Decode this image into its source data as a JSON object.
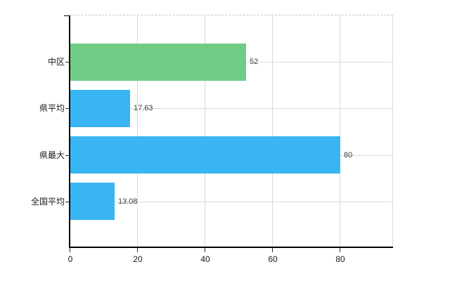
{
  "chart_data": {
    "type": "bar",
    "orientation": "horizontal",
    "title": "",
    "xlabel": "",
    "ylabel": "",
    "categories": [
      "中区",
      "県平均",
      "県最大",
      "全国平均"
    ],
    "values": [
      52,
      17.63,
      80,
      13.08
    ],
    "value_labels": [
      "52",
      "17.63",
      "80",
      "13.08"
    ],
    "bar_colors": [
      "#70cc84",
      "#38b5f2",
      "#38b5f2",
      "#38b5f2"
    ],
    "x_ticks": [
      0,
      20,
      40,
      60,
      80
    ],
    "x_tick_labels": [
      "0",
      "20",
      "40",
      "60",
      "80"
    ],
    "xlim": [
      0,
      95.6
    ],
    "grid": true,
    "legend_position": "none"
  },
  "colors": {
    "background": "#ffffff",
    "bar_green": "#70cc84",
    "bar_blue": "#38b5f2",
    "gridline": "#d9d9d9",
    "plot_border": "#c8c8c8",
    "axis": "#000000",
    "category_text": "#1a1a1a",
    "value_text": "#3c3c3c"
  }
}
